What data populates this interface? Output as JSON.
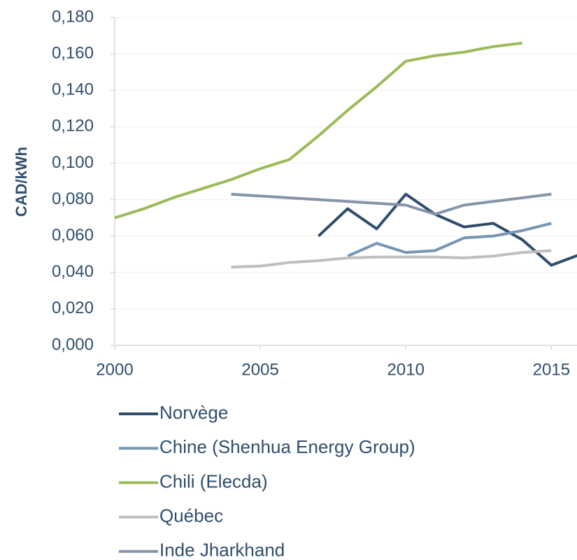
{
  "chart_data": {
    "type": "line",
    "ylabel": "CAD/kWh",
    "x": [
      2000,
      2001,
      2002,
      2003,
      2004,
      2005,
      2006,
      2007,
      2008,
      2009,
      2010,
      2011,
      2012,
      2013,
      2014,
      2015,
      2016
    ],
    "series": [
      {
        "name": "Norvège",
        "color": "#2e4d6b",
        "values": [
          null,
          null,
          null,
          null,
          null,
          null,
          null,
          0.06,
          0.075,
          0.064,
          0.083,
          0.072,
          0.065,
          0.067,
          0.058,
          0.044,
          0.05
        ]
      },
      {
        "name": "Chine (Shenhua Energy Group)",
        "color": "#7596b3",
        "values": [
          null,
          null,
          null,
          null,
          null,
          null,
          null,
          null,
          0.049,
          0.056,
          0.051,
          0.052,
          0.059,
          0.06,
          0.063,
          0.067,
          null
        ]
      },
      {
        "name": "Chili (Elecda)",
        "color": "#9bbb59",
        "values": [
          0.07,
          0.075,
          0.081,
          0.086,
          0.091,
          0.097,
          0.102,
          0.115,
          0.129,
          0.142,
          0.156,
          0.159,
          0.161,
          0.164,
          0.166,
          null,
          null
        ]
      },
      {
        "name": "Québec",
        "color": "#bfbfbf",
        "values": [
          null,
          null,
          null,
          null,
          0.043,
          0.0435,
          0.0455,
          0.0465,
          0.048,
          0.0485,
          0.0485,
          0.0485,
          0.048,
          0.049,
          0.051,
          0.052,
          null
        ]
      },
      {
        "name": "Inde Jharkhand",
        "color": "#8594a8",
        "values": [
          null,
          null,
          null,
          null,
          0.083,
          0.082,
          0.081,
          0.08,
          0.079,
          0.078,
          0.077,
          0.072,
          0.077,
          0.079,
          0.081,
          0.083,
          null
        ]
      }
    ],
    "xlim": [
      2000,
      2016
    ],
    "xticks": [
      2000,
      2005,
      2010,
      2015
    ],
    "ylim": [
      0,
      0.18
    ],
    "yticks": [
      {
        "value": 0,
        "label": "0,000"
      },
      {
        "value": 0.02,
        "label": "0,020"
      },
      {
        "value": 0.04,
        "label": "0,040"
      },
      {
        "value": 0.06,
        "label": "0,060"
      },
      {
        "value": 0.08,
        "label": "0,080"
      },
      {
        "value": 0.1,
        "label": "0,100"
      },
      {
        "value": 0.12,
        "label": "0,120"
      },
      {
        "value": 0.14,
        "label": "0,140"
      },
      {
        "value": 0.16,
        "label": "0,160"
      },
      {
        "value": 0.18,
        "label": "0,180"
      }
    ],
    "grid": true,
    "legend": "bottom"
  }
}
